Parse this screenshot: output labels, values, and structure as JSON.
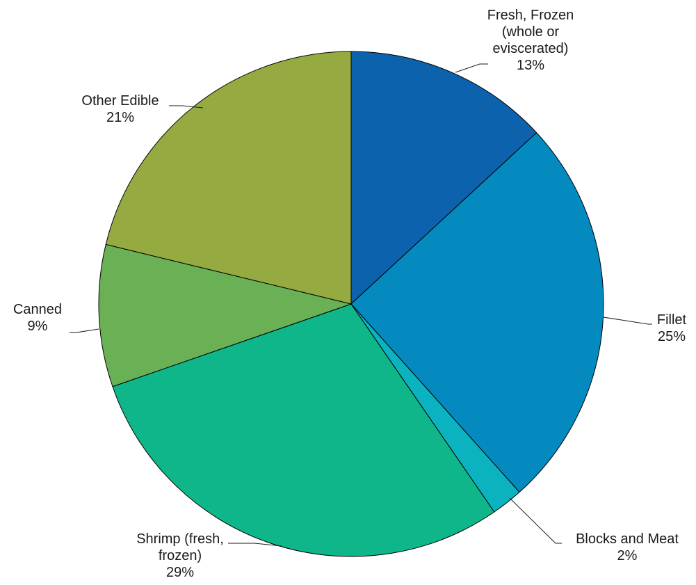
{
  "chart_data": {
    "type": "pie",
    "title": "",
    "start_angle_deg": 0,
    "direction": "clockwise",
    "slices": [
      {
        "label_lines": [
          "Fresh, Frozen",
          "(whole or",
          "eviscerated)"
        ],
        "value_text": "13%",
        "value": 13,
        "color": "#0c62ad"
      },
      {
        "label_lines": [
          "Fillet"
        ],
        "value_text": "25%",
        "value": 25,
        "color": "#058ac0"
      },
      {
        "label_lines": [
          "Blocks and Meat"
        ],
        "value_text": "2%",
        "value": 2,
        "color": "#0ab3bf"
      },
      {
        "label_lines": [
          "Shrimp (fresh,",
          "frozen)"
        ],
        "value_text": "29%",
        "value": 29,
        "color": "#0fb689"
      },
      {
        "label_lines": [
          "Canned"
        ],
        "value_text": "9%",
        "value": 9,
        "color": "#6ab155"
      },
      {
        "label_lines": [
          "Other Edible"
        ],
        "value_text": "21%",
        "value": 21,
        "color": "#95ab41"
      }
    ]
  }
}
